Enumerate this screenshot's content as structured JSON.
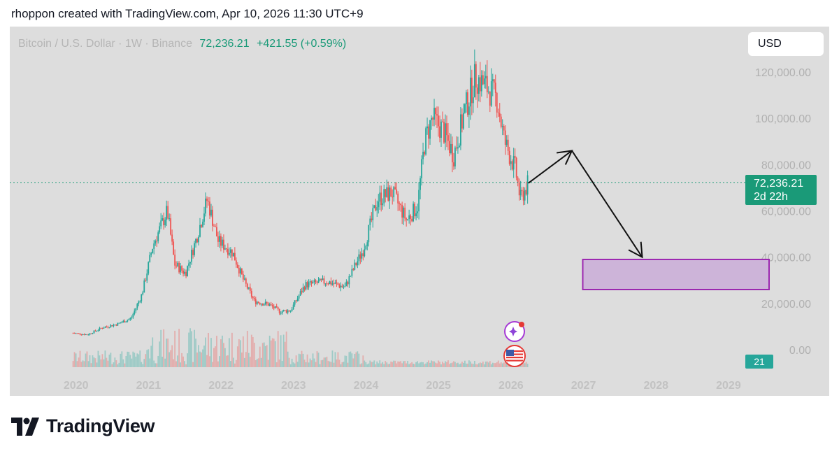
{
  "caption": "rhoppon created with TradingView.com, Apr 10, 2026 11:30 UTC+9",
  "symbol": {
    "name": "Bitcoin / U.S. Dollar · 1W · Binance",
    "price": "72,236.21",
    "change": "+421.55 (+0.59%)"
  },
  "currency_button": "USD",
  "price_tag": {
    "price": "72,236.21",
    "countdown": "2d 22h"
  },
  "volume_tag": "21",
  "footer": {
    "logo_text": "TradingView"
  },
  "colors": {
    "up": "#26a69a",
    "down": "#ef5350",
    "last_price_line": "#1a9a78",
    "target_box_fill": "#cdb4d9",
    "target_box_stroke": "#9c27b0",
    "background": "#dddddd"
  },
  "icons": [
    "ai-sparkle-icon",
    "us-flag-icon"
  ],
  "chart_data": {
    "type": "candlestick",
    "title": "Bitcoin / U.S. Dollar · 1W · Binance",
    "y_axis_labels": [
      "120,000.00",
      "100,000.00",
      "80,000.00",
      "60,000.00",
      "40,000.00",
      "20,000.00",
      "0.00"
    ],
    "y_axis_values": [
      120000,
      100000,
      80000,
      60000,
      40000,
      20000,
      0
    ],
    "ylim": [
      0,
      125000
    ],
    "x_axis_labels": [
      "2020",
      "2021",
      "2022",
      "2023",
      "2024",
      "2025",
      "2026",
      "2027",
      "2028",
      "2029"
    ],
    "xlim": [
      2019.85,
      2029.6
    ],
    "last_price": 72236.21,
    "price_path": [
      [
        2020.0,
        7200
      ],
      [
        2020.2,
        6500
      ],
      [
        2020.4,
        9500
      ],
      [
        2020.6,
        11000
      ],
      [
        2020.8,
        13500
      ],
      [
        2020.95,
        24000
      ],
      [
        2021.1,
        45000
      ],
      [
        2021.3,
        60000
      ],
      [
        2021.4,
        37000
      ],
      [
        2021.55,
        33000
      ],
      [
        2021.7,
        48000
      ],
      [
        2021.85,
        65000
      ],
      [
        2022.0,
        47000
      ],
      [
        2022.2,
        42000
      ],
      [
        2022.35,
        30000
      ],
      [
        2022.5,
        21000
      ],
      [
        2022.7,
        19500
      ],
      [
        2022.85,
        16500
      ],
      [
        2023.0,
        17000
      ],
      [
        2023.2,
        28000
      ],
      [
        2023.5,
        29500
      ],
      [
        2023.75,
        27000
      ],
      [
        2023.9,
        37000
      ],
      [
        2024.0,
        43000
      ],
      [
        2024.2,
        65000
      ],
      [
        2024.4,
        68000
      ],
      [
        2024.6,
        56000
      ],
      [
        2024.75,
        62000
      ],
      [
        2024.85,
        90000
      ],
      [
        2024.95,
        100000
      ],
      [
        2025.1,
        95000
      ],
      [
        2025.25,
        84000
      ],
      [
        2025.4,
        103000
      ],
      [
        2025.55,
        118000
      ],
      [
        2025.75,
        112000
      ],
      [
        2025.85,
        108000
      ],
      [
        2025.95,
        90000
      ],
      [
        2026.1,
        78000
      ],
      [
        2026.17,
        65000
      ],
      [
        2026.25,
        70000
      ],
      [
        2026.28,
        72236
      ]
    ],
    "projection": [
      {
        "from": [
          2026.28,
          72000
        ],
        "to": [
          2026.88,
          86000
        ]
      },
      {
        "from": [
          2026.88,
          86000
        ],
        "to": [
          2027.85,
          40000
        ]
      }
    ],
    "target_zone": {
      "x_from": 2027.03,
      "x_to": 2029.6,
      "y_from": 26000,
      "y_to": 39000
    }
  }
}
